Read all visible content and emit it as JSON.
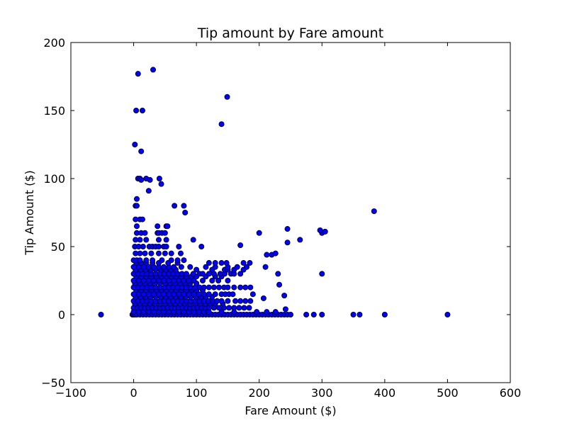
{
  "chart_data": {
    "type": "scatter",
    "title": "Tip amount by Fare amount",
    "xlabel": "Fare Amount ($)",
    "ylabel": "Tip Amount ($)",
    "xlim": [
      -100,
      600
    ],
    "ylim": [
      -50,
      200
    ],
    "xticks": [
      -100,
      0,
      100,
      200,
      300,
      400,
      500,
      600
    ],
    "yticks": [
      -50,
      0,
      50,
      100,
      150,
      200
    ],
    "xtick_labels": [
      "−100",
      "0",
      "100",
      "200",
      "300",
      "400",
      "500",
      "600"
    ],
    "ytick_labels": [
      "−50",
      "0",
      "50",
      "100",
      "150",
      "200"
    ],
    "grid": false,
    "marker_color": "#0000ff",
    "marker_edge_color": "#000000",
    "points": [
      [
        -52,
        0
      ],
      [
        275,
        0
      ],
      [
        287,
        0
      ],
      [
        300,
        0
      ],
      [
        350,
        0
      ],
      [
        360,
        0
      ],
      [
        400,
        0
      ],
      [
        500,
        0
      ],
      [
        -2,
        0
      ],
      [
        0,
        0
      ],
      [
        2,
        0
      ],
      [
        5,
        0
      ],
      [
        10,
        0
      ],
      [
        15,
        0
      ],
      [
        20,
        0
      ],
      [
        25,
        0
      ],
      [
        30,
        0
      ],
      [
        35,
        0
      ],
      [
        40,
        0
      ],
      [
        45,
        0
      ],
      [
        50,
        0
      ],
      [
        55,
        0
      ],
      [
        60,
        0
      ],
      [
        65,
        0
      ],
      [
        70,
        0
      ],
      [
        75,
        0
      ],
      [
        80,
        0
      ],
      [
        85,
        0
      ],
      [
        90,
        0
      ],
      [
        95,
        0
      ],
      [
        100,
        0
      ],
      [
        105,
        0
      ],
      [
        110,
        0
      ],
      [
        115,
        0
      ],
      [
        120,
        0
      ],
      [
        125,
        0
      ],
      [
        130,
        0
      ],
      [
        135,
        0
      ],
      [
        140,
        0
      ],
      [
        145,
        0
      ],
      [
        150,
        0
      ],
      [
        155,
        0
      ],
      [
        160,
        0
      ],
      [
        165,
        0
      ],
      [
        170,
        0
      ],
      [
        175,
        0
      ],
      [
        180,
        0
      ],
      [
        185,
        0
      ],
      [
        190,
        0
      ],
      [
        195,
        0
      ],
      [
        200,
        0
      ],
      [
        205,
        0
      ],
      [
        210,
        0
      ],
      [
        215,
        0
      ],
      [
        220,
        0
      ],
      [
        225,
        0
      ],
      [
        230,
        0
      ],
      [
        235,
        0
      ],
      [
        240,
        0
      ],
      [
        245,
        0
      ],
      [
        250,
        0
      ],
      [
        0,
        2
      ],
      [
        8,
        2
      ],
      [
        16,
        2
      ],
      [
        24,
        2
      ],
      [
        32,
        2
      ],
      [
        40,
        2
      ],
      [
        48,
        2
      ],
      [
        56,
        2
      ],
      [
        64,
        2
      ],
      [
        72,
        2
      ],
      [
        80,
        2
      ],
      [
        88,
        2
      ],
      [
        96,
        2
      ],
      [
        104,
        2
      ],
      [
        112,
        2
      ],
      [
        120,
        2
      ],
      [
        140,
        2
      ],
      [
        160,
        2
      ],
      [
        196,
        2
      ],
      [
        212,
        2
      ],
      [
        226,
        2
      ],
      [
        0,
        5
      ],
      [
        6,
        5
      ],
      [
        12,
        5
      ],
      [
        18,
        5
      ],
      [
        24,
        5
      ],
      [
        30,
        5
      ],
      [
        36,
        5
      ],
      [
        42,
        5
      ],
      [
        48,
        5
      ],
      [
        54,
        5
      ],
      [
        60,
        5
      ],
      [
        66,
        5
      ],
      [
        72,
        5
      ],
      [
        78,
        5
      ],
      [
        84,
        5
      ],
      [
        90,
        5
      ],
      [
        96,
        5
      ],
      [
        102,
        5
      ],
      [
        108,
        5
      ],
      [
        114,
        5
      ],
      [
        120,
        5
      ],
      [
        128,
        5
      ],
      [
        136,
        5
      ],
      [
        144,
        5
      ],
      [
        152,
        5
      ],
      [
        160,
        5
      ],
      [
        168,
        5
      ],
      [
        176,
        5
      ],
      [
        184,
        5
      ],
      [
        242,
        4
      ],
      [
        2,
        8
      ],
      [
        10,
        8
      ],
      [
        18,
        8
      ],
      [
        26,
        8
      ],
      [
        34,
        8
      ],
      [
        42,
        8
      ],
      [
        50,
        8
      ],
      [
        58,
        8
      ],
      [
        66,
        8
      ],
      [
        74,
        8
      ],
      [
        82,
        8
      ],
      [
        90,
        8
      ],
      [
        98,
        8
      ],
      [
        106,
        8
      ],
      [
        114,
        8
      ],
      [
        122,
        8
      ],
      [
        130,
        8
      ],
      [
        142,
        8
      ],
      [
        0,
        10
      ],
      [
        7,
        10
      ],
      [
        14,
        10
      ],
      [
        21,
        10
      ],
      [
        28,
        10
      ],
      [
        35,
        10
      ],
      [
        42,
        10
      ],
      [
        49,
        10
      ],
      [
        56,
        10
      ],
      [
        63,
        10
      ],
      [
        70,
        10
      ],
      [
        77,
        10
      ],
      [
        84,
        10
      ],
      [
        91,
        10
      ],
      [
        98,
        10
      ],
      [
        105,
        10
      ],
      [
        112,
        10
      ],
      [
        119,
        10
      ],
      [
        126,
        10
      ],
      [
        133,
        10
      ],
      [
        140,
        10
      ],
      [
        150,
        10
      ],
      [
        162,
        10
      ],
      [
        170,
        10
      ],
      [
        178,
        10
      ],
      [
        186,
        10
      ],
      [
        207,
        12
      ],
      [
        3,
        13
      ],
      [
        11,
        13
      ],
      [
        19,
        13
      ],
      [
        27,
        13
      ],
      [
        35,
        13
      ],
      [
        43,
        13
      ],
      [
        51,
        13
      ],
      [
        59,
        13
      ],
      [
        67,
        13
      ],
      [
        75,
        13
      ],
      [
        83,
        13
      ],
      [
        91,
        13
      ],
      [
        99,
        13
      ],
      [
        107,
        13
      ],
      [
        115,
        13
      ],
      [
        125,
        13
      ],
      [
        240,
        14
      ],
      [
        0,
        15
      ],
      [
        8,
        15
      ],
      [
        16,
        15
      ],
      [
        24,
        15
      ],
      [
        32,
        15
      ],
      [
        40,
        15
      ],
      [
        48,
        15
      ],
      [
        56,
        15
      ],
      [
        64,
        15
      ],
      [
        72,
        15
      ],
      [
        80,
        15
      ],
      [
        88,
        15
      ],
      [
        96,
        15
      ],
      [
        104,
        15
      ],
      [
        112,
        15
      ],
      [
        120,
        15
      ],
      [
        130,
        15
      ],
      [
        140,
        15
      ],
      [
        146,
        15
      ],
      [
        152,
        15
      ],
      [
        158,
        15
      ],
      [
        190,
        15
      ],
      [
        4,
        18
      ],
      [
        12,
        18
      ],
      [
        20,
        18
      ],
      [
        28,
        18
      ],
      [
        36,
        18
      ],
      [
        44,
        18
      ],
      [
        52,
        18
      ],
      [
        60,
        18
      ],
      [
        68,
        18
      ],
      [
        76,
        18
      ],
      [
        84,
        18
      ],
      [
        92,
        18
      ],
      [
        100,
        18
      ],
      [
        110,
        18
      ],
      [
        0,
        20
      ],
      [
        7,
        20
      ],
      [
        14,
        20
      ],
      [
        21,
        20
      ],
      [
        28,
        20
      ],
      [
        35,
        20
      ],
      [
        42,
        20
      ],
      [
        49,
        20
      ],
      [
        56,
        20
      ],
      [
        63,
        20
      ],
      [
        70,
        20
      ],
      [
        77,
        20
      ],
      [
        84,
        20
      ],
      [
        91,
        20
      ],
      [
        98,
        20
      ],
      [
        105,
        20
      ],
      [
        112,
        20
      ],
      [
        120,
        20
      ],
      [
        128,
        20
      ],
      [
        136,
        20
      ],
      [
        144,
        20
      ],
      [
        150,
        20
      ],
      [
        160,
        20
      ],
      [
        170,
        20
      ],
      [
        178,
        20
      ],
      [
        186,
        20
      ],
      [
        232,
        22
      ],
      [
        2,
        23
      ],
      [
        10,
        23
      ],
      [
        18,
        23
      ],
      [
        26,
        23
      ],
      [
        34,
        23
      ],
      [
        42,
        23
      ],
      [
        50,
        23
      ],
      [
        58,
        23
      ],
      [
        66,
        23
      ],
      [
        74,
        23
      ],
      [
        82,
        23
      ],
      [
        90,
        23
      ],
      [
        100,
        23
      ],
      [
        0,
        25
      ],
      [
        8,
        25
      ],
      [
        16,
        25
      ],
      [
        24,
        25
      ],
      [
        32,
        25
      ],
      [
        40,
        25
      ],
      [
        48,
        25
      ],
      [
        56,
        25
      ],
      [
        64,
        25
      ],
      [
        72,
        25
      ],
      [
        80,
        25
      ],
      [
        88,
        25
      ],
      [
        96,
        25
      ],
      [
        110,
        25
      ],
      [
        125,
        25
      ],
      [
        135,
        25
      ],
      [
        150,
        25
      ],
      [
        4,
        28
      ],
      [
        12,
        28
      ],
      [
        20,
        28
      ],
      [
        28,
        28
      ],
      [
        36,
        28
      ],
      [
        44,
        28
      ],
      [
        52,
        28
      ],
      [
        60,
        28
      ],
      [
        68,
        28
      ],
      [
        76,
        28
      ],
      [
        84,
        28
      ],
      [
        92,
        28
      ],
      [
        100,
        28
      ],
      [
        115,
        28
      ],
      [
        130,
        28
      ],
      [
        140,
        28
      ],
      [
        0,
        30
      ],
      [
        7,
        30
      ],
      [
        14,
        30
      ],
      [
        21,
        30
      ],
      [
        28,
        30
      ],
      [
        35,
        30
      ],
      [
        42,
        30
      ],
      [
        49,
        30
      ],
      [
        56,
        30
      ],
      [
        63,
        30
      ],
      [
        70,
        30
      ],
      [
        77,
        30
      ],
      [
        84,
        30
      ],
      [
        95,
        30
      ],
      [
        105,
        30
      ],
      [
        110,
        30
      ],
      [
        120,
        30
      ],
      [
        128,
        30
      ],
      [
        138,
        30
      ],
      [
        145,
        30
      ],
      [
        155,
        30
      ],
      [
        160,
        30
      ],
      [
        170,
        30
      ],
      [
        230,
        30
      ],
      [
        300,
        30
      ],
      [
        3,
        33
      ],
      [
        11,
        33
      ],
      [
        19,
        33
      ],
      [
        27,
        33
      ],
      [
        35,
        33
      ],
      [
        43,
        33
      ],
      [
        51,
        33
      ],
      [
        59,
        33
      ],
      [
        67,
        33
      ],
      [
        100,
        33
      ],
      [
        125,
        33
      ],
      [
        145,
        33
      ],
      [
        150,
        33
      ],
      [
        160,
        33
      ],
      [
        175,
        33
      ],
      [
        0,
        35
      ],
      [
        8,
        35
      ],
      [
        16,
        35
      ],
      [
        24,
        35
      ],
      [
        32,
        35
      ],
      [
        40,
        35
      ],
      [
        48,
        35
      ],
      [
        56,
        35
      ],
      [
        64,
        35
      ],
      [
        76,
        35
      ],
      [
        90,
        35
      ],
      [
        115,
        35
      ],
      [
        130,
        35
      ],
      [
        150,
        35
      ],
      [
        165,
        35
      ],
      [
        180,
        35
      ],
      [
        210,
        35
      ],
      [
        4,
        38
      ],
      [
        12,
        38
      ],
      [
        20,
        38
      ],
      [
        30,
        38
      ],
      [
        40,
        38
      ],
      [
        55,
        38
      ],
      [
        70,
        38
      ],
      [
        120,
        38
      ],
      [
        130,
        38
      ],
      [
        140,
        38
      ],
      [
        148,
        38
      ],
      [
        175,
        38
      ],
      [
        185,
        38
      ],
      [
        0,
        40
      ],
      [
        5,
        40
      ],
      [
        10,
        40
      ],
      [
        20,
        40
      ],
      [
        30,
        40
      ],
      [
        45,
        40
      ],
      [
        60,
        40
      ],
      [
        70,
        40
      ],
      [
        80,
        40
      ],
      [
        3,
        45
      ],
      [
        10,
        45
      ],
      [
        18,
        45
      ],
      [
        28,
        45
      ],
      [
        40,
        45
      ],
      [
        50,
        45
      ],
      [
        60,
        45
      ],
      [
        75,
        45
      ],
      [
        212,
        44
      ],
      [
        220,
        44
      ],
      [
        226,
        45
      ],
      [
        2,
        50
      ],
      [
        8,
        50
      ],
      [
        15,
        50
      ],
      [
        25,
        50
      ],
      [
        30,
        50
      ],
      [
        35,
        50
      ],
      [
        40,
        50
      ],
      [
        48,
        50
      ],
      [
        52,
        50
      ],
      [
        72,
        50
      ],
      [
        108,
        50
      ],
      [
        170,
        51
      ],
      [
        245,
        53
      ],
      [
        3,
        55
      ],
      [
        10,
        55
      ],
      [
        20,
        55
      ],
      [
        40,
        55
      ],
      [
        52,
        55
      ],
      [
        95,
        55
      ],
      [
        265,
        55
      ],
      [
        5,
        60
      ],
      [
        12,
        60
      ],
      [
        18,
        60
      ],
      [
        38,
        60
      ],
      [
        40,
        60
      ],
      [
        45,
        60
      ],
      [
        50,
        60
      ],
      [
        200,
        60
      ],
      [
        300,
        60
      ],
      [
        305,
        61
      ],
      [
        297,
        62
      ],
      [
        245,
        63
      ],
      [
        5,
        65
      ],
      [
        38,
        65
      ],
      [
        52,
        65
      ],
      [
        54,
        65
      ],
      [
        3,
        70
      ],
      [
        10,
        70
      ],
      [
        14,
        70
      ],
      [
        383,
        76
      ],
      [
        3,
        80
      ],
      [
        5,
        80
      ],
      [
        65,
        80
      ],
      [
        80,
        80
      ],
      [
        82,
        75
      ],
      [
        5,
        85
      ],
      [
        24,
        91
      ],
      [
        44,
        96
      ],
      [
        7,
        100
      ],
      [
        10,
        100
      ],
      [
        12,
        99
      ],
      [
        20,
        100
      ],
      [
        26,
        99
      ],
      [
        41,
        100
      ],
      [
        12,
        120
      ],
      [
        2,
        125
      ],
      [
        140,
        140
      ],
      [
        4,
        150
      ],
      [
        14,
        150
      ],
      [
        149,
        160
      ],
      [
        7,
        177
      ],
      [
        31,
        180
      ]
    ]
  }
}
